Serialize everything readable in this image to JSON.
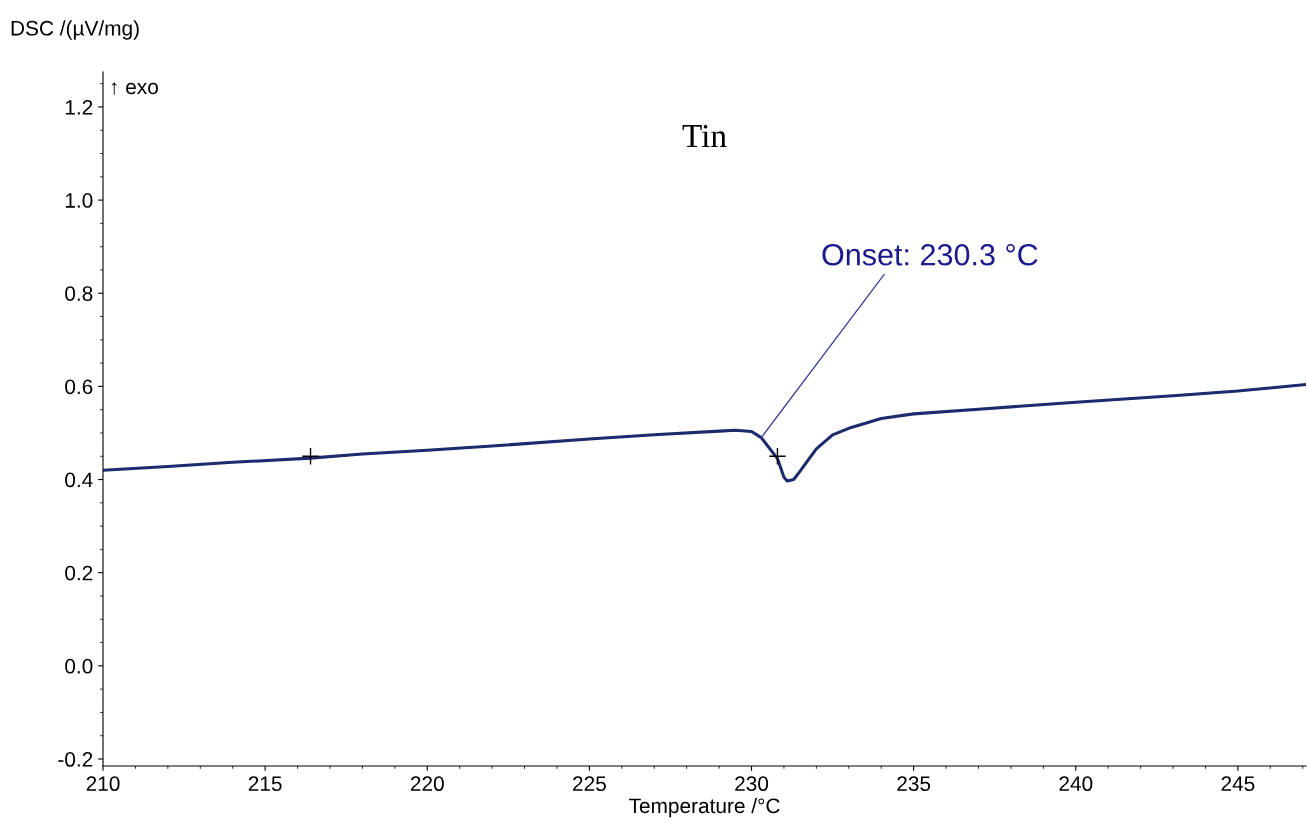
{
  "chart_data": {
    "type": "line",
    "title": "Tin",
    "xlabel": "Temperature /°C",
    "ylabel": "DSC /(µV/mg)",
    "annotations": [
      "↑ exo",
      {
        "text": "Onset: 230.3 °C",
        "x": 230.3,
        "y": 0.49
      }
    ],
    "series": [
      {
        "color": "#1c2a6e",
        "x": [
          210,
          212,
          214,
          216.4,
          218,
          220,
          222,
          225,
          227,
          229,
          229.5,
          230,
          230.3,
          230.5,
          230.8,
          231.0,
          231.1,
          231.3,
          231.5,
          231.8,
          232,
          232.5,
          233,
          234,
          235,
          237,
          240,
          243,
          245,
          247.1
        ],
        "values": [
          0.42,
          0.428,
          0.437,
          0.446,
          0.455,
          0.463,
          0.472,
          0.487,
          0.496,
          0.504,
          0.506,
          0.503,
          0.49,
          0.472,
          0.445,
          0.405,
          0.397,
          0.4,
          0.418,
          0.447,
          0.466,
          0.496,
          0.51,
          0.531,
          0.541,
          0.551,
          0.566,
          0.58,
          0.59,
          0.604
        ]
      },
      {
        "type": "scatter",
        "color": "#000000",
        "marker": "cross",
        "x": [
          216.4,
          230.8
        ],
        "values": [
          0.45,
          0.45
        ]
      }
    ],
    "xlim": [
      210,
      247.1
    ],
    "ylim": [
      -0.215,
      1.275
    ],
    "xticks": [
      210,
      215,
      220,
      225,
      230,
      235,
      240,
      245
    ],
    "yticks": [
      -0.2,
      {
        "value": 0,
        "label": "0.0"
      },
      0.2,
      0.4,
      0.6,
      0.8,
      {
        "value": 1,
        "label": "1.0"
      },
      1.2
    ],
    "grid": false,
    "legend": false
  }
}
